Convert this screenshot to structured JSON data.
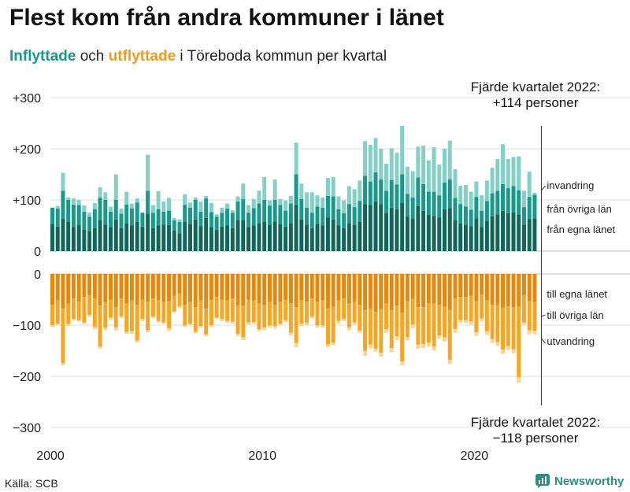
{
  "title": "Flest kom från andra kommuner i länet",
  "subtitle": {
    "in_word": "Inflyttade",
    "and_word": " och ",
    "out_word": "utflyttade",
    "rest": " i Töreboda kommun per kvartal"
  },
  "colors": {
    "in_egna": "#11665a",
    "in_ovriga": "#18998a",
    "in_invandring": "#85d0c6",
    "out_egna": "#e5880c",
    "out_ovriga": "#f5a623",
    "out_utvandring": "#fbd595",
    "grid": "#dddddd",
    "text": "#222222",
    "brand": "#2b8f7c"
  },
  "annotations": {
    "top_line1": "Fjärde kvartalet 2022:",
    "top_line2": "+114 personer",
    "bottom_line1": "Fjärde kvartalet 2022:",
    "bottom_line2": "−118 personer"
  },
  "source": "Källa: SCB",
  "brand": {
    "name": "Newsworthy",
    "icon": "bar-chart-logo-icon"
  },
  "chart_data": {
    "type": "bar",
    "stacked": true,
    "diverging": true,
    "ylim_in": [
      0,
      300
    ],
    "ylim_out": [
      -300,
      0
    ],
    "y_ticks_in": [
      {
        "value": 0,
        "label": "0"
      },
      {
        "value": 100,
        "label": "+100"
      },
      {
        "value": 200,
        "label": "+200"
      },
      {
        "value": 300,
        "label": "+300"
      }
    ],
    "y_ticks_out": [
      {
        "value": 0,
        "label": "0"
      },
      {
        "value": -100,
        "label": "−100"
      },
      {
        "value": -200,
        "label": "−200"
      },
      {
        "value": -300,
        "label": "−300"
      }
    ],
    "x_ticks": [
      {
        "index": 0,
        "label": "2000"
      },
      {
        "index": 40,
        "label": "2010"
      },
      {
        "index": 80,
        "label": "2020"
      }
    ],
    "categories_start": "2000 Q1",
    "categories_end": "2022 Q4",
    "n_quarters": 92,
    "legend_in": [
      "invandring",
      "från övriga län",
      "från egna länet"
    ],
    "legend_out": [
      "till egna länet",
      "till övriga län",
      "utvandring"
    ],
    "in_series": {
      "fran_egna_lanet": [
        53,
        48,
        63,
        58,
        47,
        52,
        42,
        39,
        45,
        60,
        52,
        47,
        62,
        45,
        55,
        50,
        57,
        48,
        73,
        45,
        50,
        52,
        51,
        40,
        35,
        58,
        53,
        62,
        49,
        65,
        47,
        42,
        48,
        50,
        45,
        60,
        60,
        47,
        50,
        55,
        58,
        52,
        58,
        53,
        48,
        55,
        90,
        62,
        52,
        45,
        53,
        50,
        66,
        62,
        50,
        45,
        55,
        52,
        58,
        92,
        90,
        97,
        92,
        75,
        85,
        82,
        95,
        68,
        64,
        88,
        79,
        70,
        69,
        66,
        82,
        84,
        60,
        55,
        52,
        49,
        64,
        47,
        59,
        68,
        72,
        79,
        74,
        76,
        72,
        52,
        63,
        64
      ],
      "fran_ovriga_lan": [
        32,
        35,
        55,
        42,
        44,
        38,
        35,
        28,
        37,
        45,
        48,
        30,
        38,
        28,
        36,
        33,
        38,
        27,
        45,
        30,
        32,
        25,
        28,
        20,
        22,
        33,
        32,
        38,
        28,
        38,
        29,
        25,
        27,
        33,
        30,
        37,
        42,
        28,
        34,
        38,
        42,
        37,
        42,
        37,
        31,
        38,
        60,
        40,
        33,
        30,
        34,
        35,
        42,
        45,
        32,
        29,
        37,
        34,
        40,
        55,
        46,
        57,
        48,
        43,
        54,
        48,
        55,
        44,
        41,
        56,
        52,
        46,
        47,
        43,
        52,
        56,
        44,
        37,
        35,
        32,
        42,
        32,
        39,
        45,
        46,
        52,
        49,
        51,
        47,
        34,
        43,
        46
      ],
      "invandring": [
        0,
        5,
        35,
        5,
        12,
        10,
        12,
        8,
        12,
        20,
        15,
        10,
        50,
        10,
        25,
        10,
        8,
        0,
        70,
        15,
        35,
        20,
        25,
        5,
        5,
        20,
        10,
        5,
        20,
        5,
        18,
        5,
        10,
        10,
        5,
        10,
        30,
        15,
        18,
        25,
        45,
        10,
        40,
        12,
        20,
        15,
        62,
        30,
        30,
        40,
        22,
        20,
        35,
        38,
        25,
        25,
        35,
        35,
        40,
        68,
        72,
        67,
        60,
        53,
        62,
        62,
        95,
        53,
        51,
        60,
        75,
        61,
        87,
        60,
        66,
        76,
        56,
        36,
        42,
        35,
        30,
        30,
        40,
        50,
        62,
        78,
        57,
        57,
        66,
        32,
        49,
        4
      ]
    },
    "out_series": {
      "till_egna_lanet": [
        60,
        52,
        68,
        58,
        48,
        55,
        45,
        42,
        48,
        62,
        55,
        50,
        65,
        48,
        58,
        52,
        60,
        50,
        55,
        48,
        52,
        55,
        53,
        43,
        38,
        60,
        55,
        65,
        52,
        68,
        50,
        45,
        50,
        52,
        48,
        62,
        62,
        50,
        52,
        58,
        60,
        55,
        60,
        55,
        50,
        58,
        65,
        52,
        55,
        48,
        55,
        52,
        68,
        64,
        52,
        48,
        58,
        55,
        60,
        70,
        68,
        74,
        69,
        58,
        70,
        62,
        76,
        53,
        49,
        65,
        65,
        58,
        58,
        60,
        64,
        70,
        48,
        45,
        45,
        43,
        53,
        40,
        52,
        60,
        61,
        66,
        63,
        65,
        64,
        42,
        53,
        55
      ],
      "till_ovriga_lan": [
        40,
        45,
        106,
        40,
        40,
        35,
        50,
        38,
        55,
        80,
        50,
        35,
        40,
        35,
        55,
        60,
        70,
        38,
        55,
        35,
        40,
        40,
        53,
        30,
        25,
        40,
        42,
        48,
        50,
        50,
        50,
        40,
        38,
        40,
        45,
        55,
        62,
        45,
        42,
        50,
        45,
        45,
        42,
        42,
        40,
        57,
        70,
        45,
        40,
        35,
        45,
        48,
        70,
        70,
        40,
        40,
        47,
        40,
        50,
        80,
        70,
        72,
        85,
        50,
        75,
        60,
        95,
        70,
        50,
        73,
        72,
        76,
        84,
        60,
        60,
        98,
        60,
        45,
        45,
        50,
        61,
        47,
        60,
        67,
        72,
        82,
        78,
        82,
        138,
        53,
        57,
        56
      ],
      "utvandring": [
        3,
        3,
        5,
        4,
        3,
        3,
        3,
        4,
        5,
        4,
        5,
        5,
        6,
        3,
        4,
        5,
        4,
        4,
        4,
        3,
        3,
        3,
        5,
        3,
        4,
        3,
        4,
        3,
        3,
        4,
        3,
        3,
        4,
        3,
        4,
        4,
        5,
        4,
        4,
        4,
        5,
        5,
        5,
        4,
        4,
        5,
        8,
        5,
        5,
        4,
        5,
        5,
        5,
        5,
        5,
        4,
        5,
        4,
        5,
        10,
        8,
        6,
        8,
        7,
        8,
        8,
        8,
        7,
        7,
        8,
        8,
        8,
        8,
        7,
        8,
        8,
        7,
        6,
        6,
        6,
        7,
        6,
        7,
        8,
        7,
        8,
        8,
        8,
        10,
        6,
        8,
        7
      ]
    }
  }
}
